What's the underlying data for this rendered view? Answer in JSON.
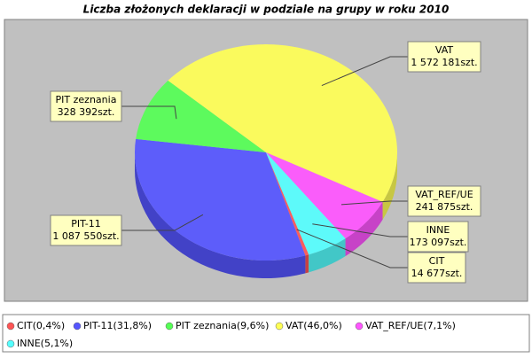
{
  "chart_data": {
    "type": "pie",
    "title": "Liczba złożonych deklaracji w podziale na grupy w roku 2010",
    "categories": [
      "CIT",
      "PIT-11",
      "PIT zeznania",
      "VAT",
      "VAT_REF/UE",
      "INNE"
    ],
    "values": [
      14677,
      1087550,
      328392,
      1572181,
      241875,
      173097
    ],
    "value_labels": [
      "14 677szt.",
      "1 087 550szt.",
      "328 392szt.",
      "1 572 181szt.",
      "241 875szt.",
      "173 097szt."
    ],
    "legend_labels": [
      "CIT(0,4%)",
      "PIT-11(31,8%)",
      "PIT zeznania(9,6%)",
      "VAT(46,0%)",
      "VAT_REF/UE(7,1%)",
      "INNE(5,1%)"
    ],
    "colors": [
      "#ff5555",
      "#5555ff",
      "#55ff55",
      "#ffff55",
      "#ff55ff",
      "#55ffff"
    ]
  }
}
